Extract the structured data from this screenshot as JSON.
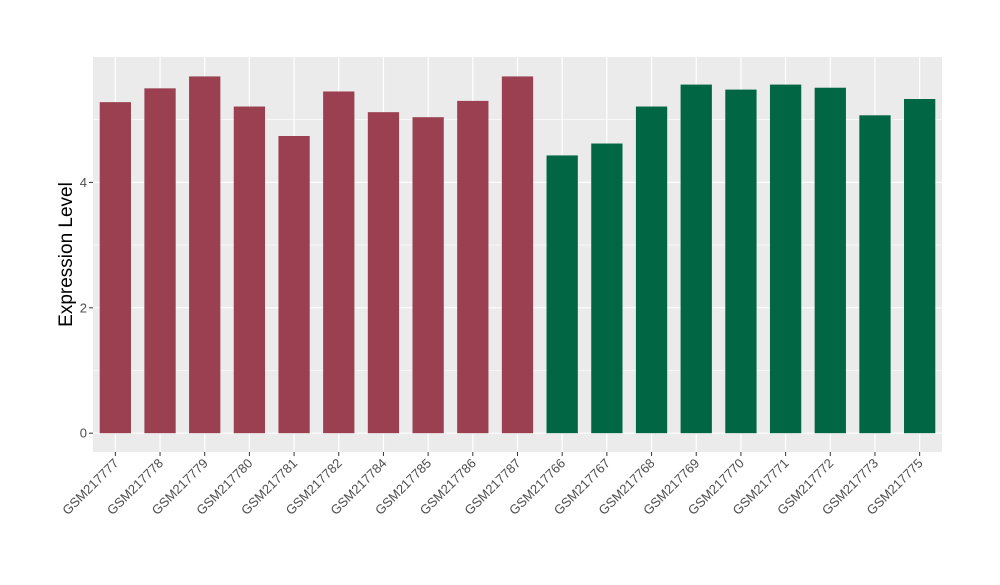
{
  "chart_data": {
    "type": "bar",
    "ylabel": "Expression Level",
    "xlabel": "",
    "title": "",
    "ylim": [
      -0.3,
      6.0
    ],
    "yticks": [
      0,
      2,
      4
    ],
    "grid": true,
    "legend": "none",
    "categories": [
      "GSM217777",
      "GSM217778",
      "GSM217779",
      "GSM217780",
      "GSM217781",
      "GSM217782",
      "GSM217784",
      "GSM217785",
      "GSM217786",
      "GSM217787",
      "GSM217766",
      "GSM217767",
      "GSM217768",
      "GSM217769",
      "GSM217770",
      "GSM217771",
      "GSM217772",
      "GSM217773",
      "GSM217775"
    ],
    "values": [
      5.28,
      5.5,
      5.69,
      5.21,
      4.74,
      5.45,
      5.12,
      5.04,
      5.3,
      5.69,
      4.43,
      4.62,
      5.21,
      5.56,
      5.48,
      5.56,
      5.51,
      5.07,
      5.33
    ],
    "group_index": [
      0,
      0,
      0,
      0,
      0,
      0,
      0,
      0,
      0,
      0,
      1,
      1,
      1,
      1,
      1,
      1,
      1,
      1,
      1
    ],
    "group_colors": [
      "#9a4050",
      "#006643"
    ],
    "panel_bg": "#ebebeb",
    "grid_color": "#ffffff"
  }
}
